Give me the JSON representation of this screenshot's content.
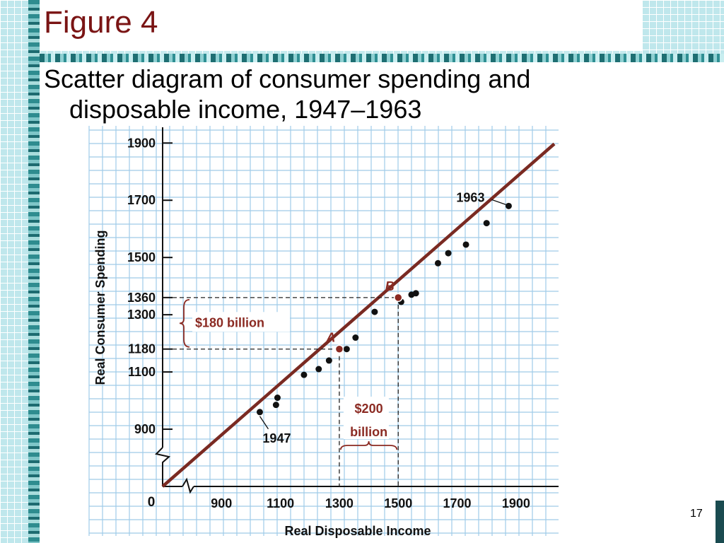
{
  "slide": {
    "title": "Figure 4",
    "subtitle_line1": "Scatter diagram of consumer spending and",
    "subtitle_line2": "disposable income, 1947–1963",
    "page_number": "17"
  },
  "colors": {
    "title": "#7a1414",
    "line": "#7a2a22",
    "point": "#111111",
    "grid": "#9fcbe8",
    "annotation": "#8b2a22"
  },
  "chart_data": {
    "type": "scatter",
    "xlabel": "Real Disposable Income",
    "ylabel": "Real Consumer Spending",
    "xlim": [
      700,
      2030
    ],
    "ylim": [
      700,
      1960
    ],
    "x_origin_label": "0",
    "x_ticks": [
      "900",
      "1100",
      "1300",
      "1500",
      "1700",
      "1900"
    ],
    "y_ticks": [
      "900",
      "1100",
      "1180",
      "1300",
      "1360",
      "1500",
      "1700",
      "1900"
    ],
    "points": [
      {
        "x": 1030,
        "y": 960
      },
      {
        "x": 1085,
        "y": 985
      },
      {
        "x": 1090,
        "y": 1010
      },
      {
        "x": 1180,
        "y": 1090
      },
      {
        "x": 1230,
        "y": 1110
      },
      {
        "x": 1265,
        "y": 1140
      },
      {
        "x": 1325,
        "y": 1180
      },
      {
        "x": 1355,
        "y": 1220
      },
      {
        "x": 1420,
        "y": 1310
      },
      {
        "x": 1510,
        "y": 1345
      },
      {
        "x": 1545,
        "y": 1370
      },
      {
        "x": 1560,
        "y": 1375
      },
      {
        "x": 1635,
        "y": 1480
      },
      {
        "x": 1670,
        "y": 1515
      },
      {
        "x": 1730,
        "y": 1545
      },
      {
        "x": 1800,
        "y": 1620
      },
      {
        "x": 1875,
        "y": 1680
      }
    ],
    "trend_line": {
      "x": [
        700,
        2030
      ],
      "y": [
        700,
        1897
      ]
    },
    "marked_points": [
      {
        "label": "A",
        "x": 1300,
        "y": 1180
      },
      {
        "label": "B",
        "x": 1500,
        "y": 1360
      }
    ],
    "annotations": {
      "first_year": "1947",
      "last_year": "1963",
      "vertical_change": "$180 billion",
      "horizontal_change_line1": "$200",
      "horizontal_change_line2": "billion"
    },
    "grid": true
  }
}
